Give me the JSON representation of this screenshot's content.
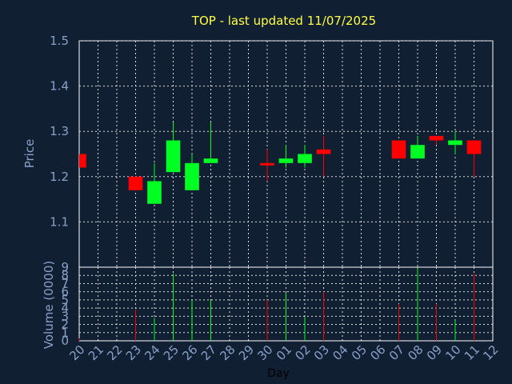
{
  "colors": {
    "background": "#111f33",
    "plot_border": "#ffffff",
    "grid": "#dddddd",
    "title": "#ffff44",
    "axis_text": "#8aa0c8",
    "x_title": "#000000",
    "up": "#00ff22",
    "down": "#ff0000"
  },
  "chart_data": [
    {
      "type": "candlestick",
      "title": "TOP - last updated 11/07/2025",
      "ylabel": "Price",
      "ylim": [
        1.0,
        1.5
      ],
      "yticks": [
        "1.1",
        "1.2",
        "1.3",
        "1.4",
        "1.5"
      ],
      "grid": true,
      "xlim": [
        20,
        32
      ],
      "candles": [
        {
          "x": 20,
          "open": 1.25,
          "close": 1.22,
          "high": 1.25,
          "low": 1.22
        },
        {
          "x": 23,
          "open": 1.2,
          "close": 1.17,
          "high": 1.2,
          "low": 1.17
        },
        {
          "x": 24,
          "open": 1.14,
          "close": 1.19,
          "high": 1.23,
          "low": 1.14
        },
        {
          "x": 25,
          "open": 1.21,
          "close": 1.28,
          "high": 1.32,
          "low": 1.21
        },
        {
          "x": 26,
          "open": 1.17,
          "close": 1.23,
          "high": 1.25,
          "low": 1.17
        },
        {
          "x": 27,
          "open": 1.23,
          "close": 1.24,
          "high": 1.32,
          "low": 1.23
        },
        {
          "x": 30,
          "open": 1.23,
          "close": 1.225,
          "high": 1.26,
          "low": 1.19
        },
        {
          "x": 31,
          "open": 1.23,
          "close": 1.24,
          "high": 1.27,
          "low": 1.22
        },
        {
          "x": 32,
          "open": 1.23,
          "close": 1.25,
          "high": 1.27,
          "low": 1.22
        },
        {
          "x": 33,
          "open": 1.26,
          "close": 1.25,
          "high": 1.29,
          "low": 1.2
        },
        {
          "x": 37,
          "open": 1.28,
          "close": 1.24,
          "high": 1.28,
          "low": 1.24
        },
        {
          "x": 38,
          "open": 1.24,
          "close": 1.27,
          "high": 1.29,
          "low": 1.24
        },
        {
          "x": 39,
          "open": 1.29,
          "close": 1.28,
          "high": 1.29,
          "low": 1.27
        },
        {
          "x": 40,
          "open": 1.27,
          "close": 1.28,
          "high": 1.3,
          "low": 1.25
        },
        {
          "x": 41,
          "open": 1.28,
          "close": 1.25,
          "high": 1.28,
          "low": 1.2
        }
      ]
    },
    {
      "type": "bar",
      "ylabel": "Volume (0000)",
      "ylim": [
        0,
        9
      ],
      "yticks": [
        "0",
        "1",
        "2",
        "3",
        "4",
        "5",
        "6",
        "7",
        "8",
        "9"
      ],
      "grid": true,
      "volumes": [
        {
          "x": 20,
          "value": 0.3,
          "color": "down"
        },
        {
          "x": 23,
          "value": 3.8,
          "color": "down"
        },
        {
          "x": 24,
          "value": 2.8,
          "color": "up"
        },
        {
          "x": 25,
          "value": 8.2,
          "color": "up"
        },
        {
          "x": 26,
          "value": 5.0,
          "color": "up"
        },
        {
          "x": 27,
          "value": 5.0,
          "color": "up"
        },
        {
          "x": 30,
          "value": 5.0,
          "color": "down"
        },
        {
          "x": 31,
          "value": 5.9,
          "color": "up"
        },
        {
          "x": 32,
          "value": 2.9,
          "color": "up"
        },
        {
          "x": 33,
          "value": 6.0,
          "color": "down"
        },
        {
          "x": 37,
          "value": 4.5,
          "color": "down"
        },
        {
          "x": 38,
          "value": 8.9,
          "color": "up"
        },
        {
          "x": 39,
          "value": 4.5,
          "color": "down"
        },
        {
          "x": 40,
          "value": 2.5,
          "color": "up"
        },
        {
          "x": 41,
          "value": 8.2,
          "color": "down"
        }
      ]
    }
  ],
  "x_axis": {
    "xlabel": "Day",
    "tick_labels": [
      "20",
      "21",
      "22",
      "23",
      "24",
      "25",
      "26",
      "27",
      "28",
      "29",
      "30",
      "01",
      "02",
      "03",
      "04",
      "05",
      "06",
      "07",
      "08",
      "09",
      "10",
      "11",
      "12"
    ]
  }
}
